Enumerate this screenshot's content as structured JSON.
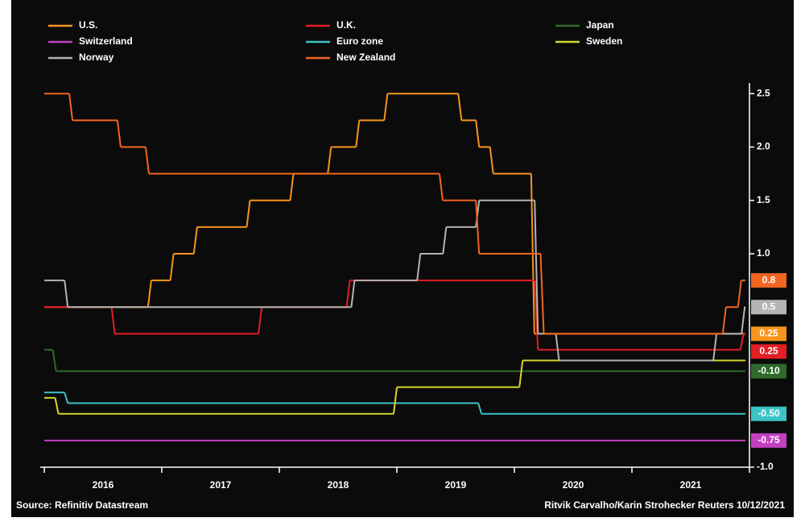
{
  "chart_data": {
    "type": "step-line",
    "xlim": [
      2016,
      2022
    ],
    "xticks": [
      2016,
      2017,
      2018,
      2019,
      2020,
      2021,
      2022
    ],
    "xlabels": [
      {
        "value": 2016.5,
        "label": "2016"
      },
      {
        "value": 2017.5,
        "label": "2017"
      },
      {
        "value": 2018.5,
        "label": "2018"
      },
      {
        "value": 2019.5,
        "label": "2019"
      },
      {
        "value": 2020.5,
        "label": "2020"
      },
      {
        "value": 2021.5,
        "label": "2021"
      }
    ],
    "ylim": [
      -1,
      2.6
    ],
    "yticks": [
      2.5,
      {
        "value": 2,
        "label": "2.0"
      },
      1.5,
      {
        "value": 1,
        "label": "1.0"
      },
      {
        "value": -1,
        "label": "-1.0"
      }
    ],
    "series": [
      {
        "name": "U.S.",
        "color": "#f7941d",
        "end_label": "0.25",
        "x": [
          2016.0,
          2016.91,
          2017.1,
          2017.3,
          2017.75,
          2018.12,
          2018.44,
          2018.68,
          2018.92,
          2019.55,
          2019.7,
          2019.82,
          2020.17,
          2021.96
        ],
        "values": [
          0.5,
          0.75,
          1.0,
          1.25,
          1.5,
          1.75,
          2.0,
          2.25,
          2.5,
          2.25,
          2.0,
          1.75,
          0.25,
          0.25
        ]
      },
      {
        "name": "U.K.",
        "color": "#e31e24",
        "end_label": "0.25",
        "x": [
          2016.0,
          2016.6,
          2017.85,
          2018.6,
          2020.2,
          2021.95,
          2021.96
        ],
        "values": [
          0.5,
          0.25,
          0.5,
          0.75,
          0.1,
          0.25,
          0.25
        ]
      },
      {
        "name": "Japan",
        "color": "#2f6a2c",
        "end_label": "-0.10",
        "x": [
          2016.0,
          2016.1,
          2021.96
        ],
        "values": [
          0.1,
          -0.1,
          -0.1
        ]
      },
      {
        "name": "Switzerland",
        "color": "#c23fc2",
        "end_label": "-0.75",
        "x": [
          2016.0,
          2021.96
        ],
        "values": [
          -0.75,
          -0.75
        ]
      },
      {
        "name": "Euro zone",
        "color": "#3cc3c8",
        "end_label": "-0.50",
        "x": [
          2016.0,
          2016.2,
          2019.72,
          2021.96
        ],
        "values": [
          -0.3,
          -0.4,
          -0.5,
          -0.5
        ]
      },
      {
        "name": "Sweden",
        "color": "#d6d62c",
        "x": [
          2016.0,
          2016.12,
          2019.0,
          2020.07,
          2021.96
        ],
        "values": [
          -0.35,
          -0.5,
          -0.25,
          0.0,
          0.0
        ]
      },
      {
        "name": "Norway",
        "color": "#b4b4b4",
        "end_label": "0.5",
        "x": [
          2016.0,
          2016.2,
          2018.64,
          2019.2,
          2019.42,
          2019.7,
          2020.2,
          2020.38,
          2021.72,
          2021.96
        ],
        "values": [
          0.75,
          0.5,
          0.75,
          1.0,
          1.25,
          1.5,
          0.25,
          0.0,
          0.25,
          0.5
        ]
      },
      {
        "name": "New Zealand",
        "color": "#f26522",
        "end_label": "0.8",
        "x": [
          2016.0,
          2016.24,
          2016.65,
          2016.89,
          2019.39,
          2019.7,
          2020.25,
          2021.8,
          2021.93,
          2021.96
        ],
        "values": [
          2.5,
          2.25,
          2.0,
          1.75,
          1.5,
          1.0,
          0.25,
          0.5,
          0.75,
          0.75
        ]
      }
    ],
    "source": "Source: Refinitiv Datastream",
    "credit": "Ritvik Carvalho/Karin Strohecker Reuters 10/12/2021"
  }
}
